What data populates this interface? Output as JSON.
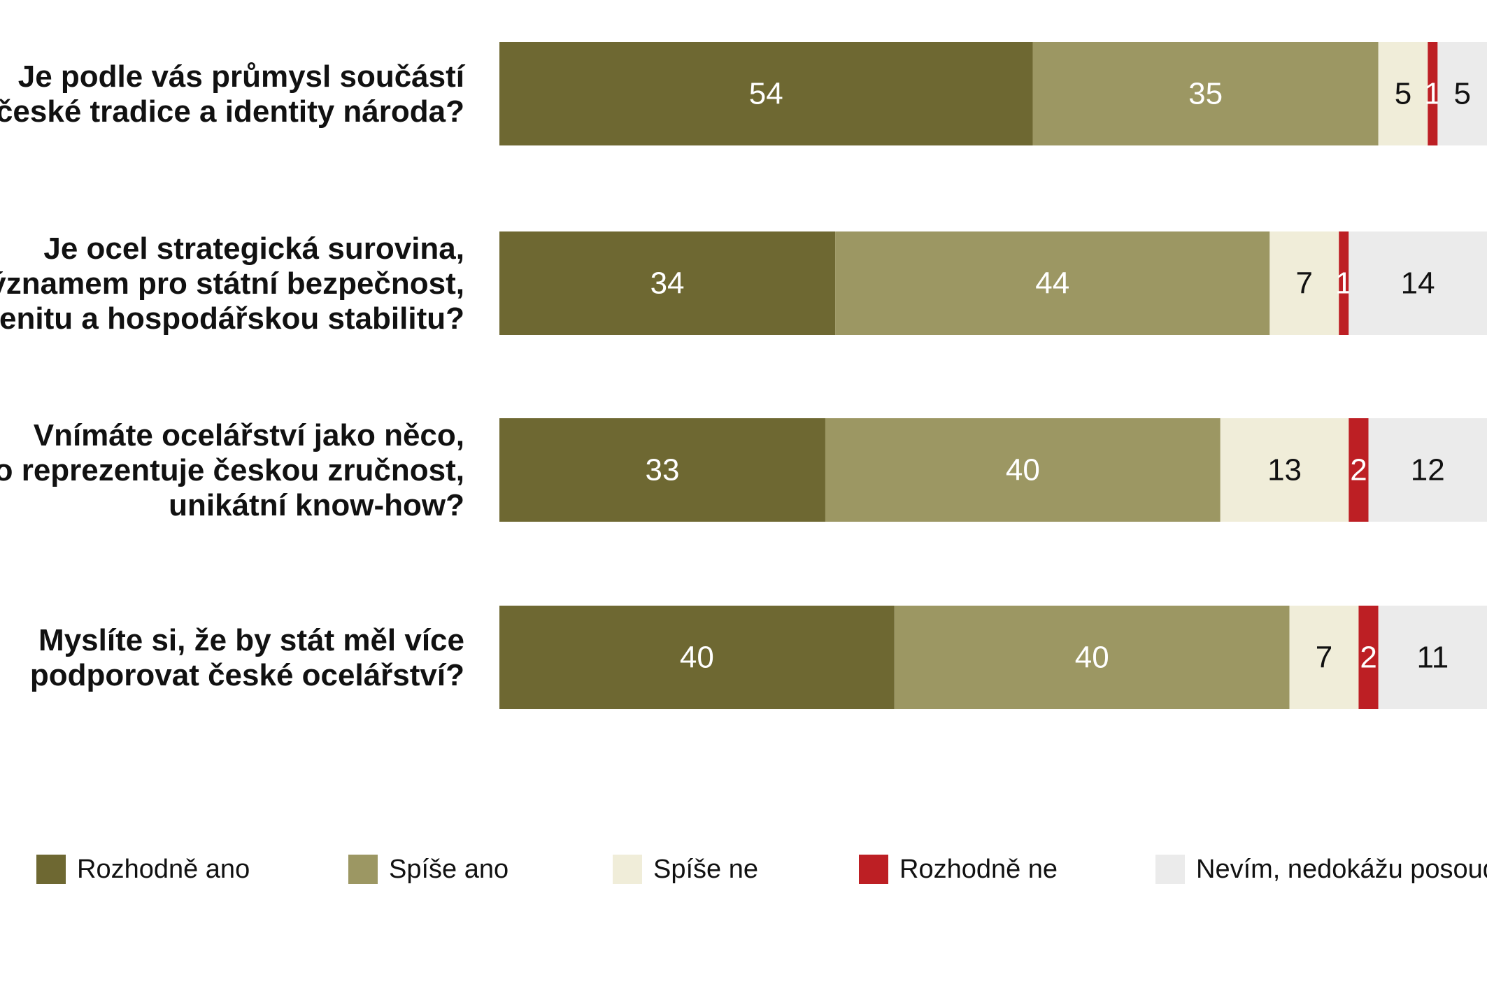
{
  "chart_data": {
    "type": "bar",
    "orientation": "horizontal",
    "stacked": true,
    "xlim": [
      0,
      100
    ],
    "grid": false,
    "legend_position": "bottom",
    "categories": [
      [
        "Je podle vás průmysl součástí",
        "české tradice a identity národa?"
      ],
      [
        "Je ocel strategická surovina,",
        "s významem pro státní bezpečnost,",
        "suverenitu a hospodářskou stabilitu?"
      ],
      [
        "Vnímáte ocelářství jako něco,",
        "co reprezentuje českou zručnost,",
        "unikátní know-how?"
      ],
      [
        "Myslíte si, že by stát měl více",
        "podporovat české ocelářství?"
      ]
    ],
    "series": [
      {
        "name": "Rozhodně ano",
        "color": "#6e6832",
        "text_color": "#ffffff",
        "values": [
          54,
          34,
          33,
          40
        ]
      },
      {
        "name": "Spíše ano",
        "color": "#9c9763",
        "text_color": "#ffffff",
        "values": [
          35,
          44,
          40,
          40
        ]
      },
      {
        "name": "Spíše ne",
        "color": "#f0edd9",
        "text_color": "#111111",
        "values": [
          5,
          7,
          13,
          7
        ]
      },
      {
        "name": "Rozhodně ne",
        "color": "#bd1f24",
        "text_color": "#ffffff",
        "values": [
          1,
          1,
          2,
          2
        ]
      },
      {
        "name": "Nevím, nedokážu posoudit",
        "color": "#ebebeb",
        "text_color": "#111111",
        "values": [
          5,
          14,
          12,
          11
        ]
      }
    ]
  }
}
